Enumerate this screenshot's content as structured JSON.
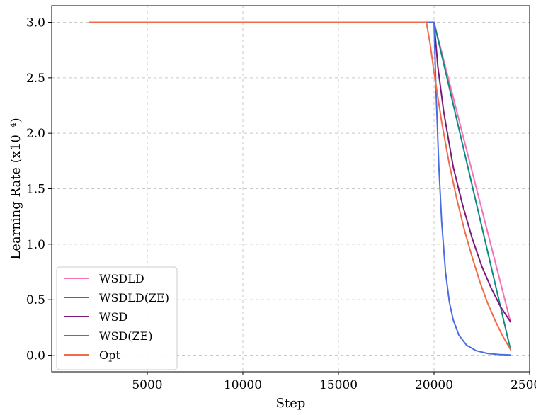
{
  "chart_data": {
    "type": "line",
    "xlabel": "Step",
    "ylabel": "Learning Rate (x10⁻⁴)",
    "xlim": [
      0,
      25000
    ],
    "ylim": [
      -0.15,
      3.15
    ],
    "xticks": [
      5000,
      10000,
      15000,
      20000,
      25000
    ],
    "xtick_labels": [
      "5000",
      "10000",
      "15000",
      "20000",
      "25000"
    ],
    "yticks": [
      0.0,
      0.5,
      1.0,
      1.5,
      2.0,
      2.5,
      3.0
    ],
    "ytick_labels": [
      "0.0",
      "0.5",
      "1.0",
      "1.5",
      "2.0",
      "2.5",
      "3.0"
    ],
    "grid": true,
    "legend_position": "lower-left",
    "series": [
      {
        "name": "WSDLD",
        "color": "#f472b6",
        "x": [
          2000,
          20000,
          24000
        ],
        "y": [
          3.0,
          3.0,
          0.3
        ]
      },
      {
        "name": "WSDLD(ZE)",
        "color": "#0f8a80",
        "x": [
          2000,
          20000,
          24000
        ],
        "y": [
          3.0,
          3.0,
          0.05
        ]
      },
      {
        "name": "WSD",
        "color": "#7b1a7b",
        "x": [
          2000,
          20000,
          20200,
          20500,
          21000,
          21500,
          22000,
          22500,
          23000,
          23500,
          24000
        ],
        "y": [
          3.0,
          3.0,
          2.6,
          2.2,
          1.7,
          1.35,
          1.05,
          0.8,
          0.6,
          0.43,
          0.3
        ]
      },
      {
        "name": "WSD(ZE)",
        "color": "#4a6ee0",
        "x": [
          2000,
          20000,
          20100,
          20250,
          20400,
          20600,
          20800,
          21000,
          21300,
          21700,
          22200,
          22800,
          23400,
          24000
        ],
        "y": [
          3.0,
          3.0,
          2.4,
          1.7,
          1.2,
          0.75,
          0.48,
          0.32,
          0.18,
          0.09,
          0.04,
          0.015,
          0.006,
          0.002
        ]
      },
      {
        "name": "Opt",
        "color": "#f26b4a",
        "x": [
          2000,
          19600,
          19800,
          20000,
          20400,
          20800,
          21200,
          21600,
          22000,
          22400,
          22800,
          23200,
          23600,
          24000
        ],
        "y": [
          3.0,
          3.0,
          2.8,
          2.55,
          2.1,
          1.72,
          1.4,
          1.12,
          0.88,
          0.66,
          0.47,
          0.31,
          0.17,
          0.05
        ]
      }
    ]
  }
}
